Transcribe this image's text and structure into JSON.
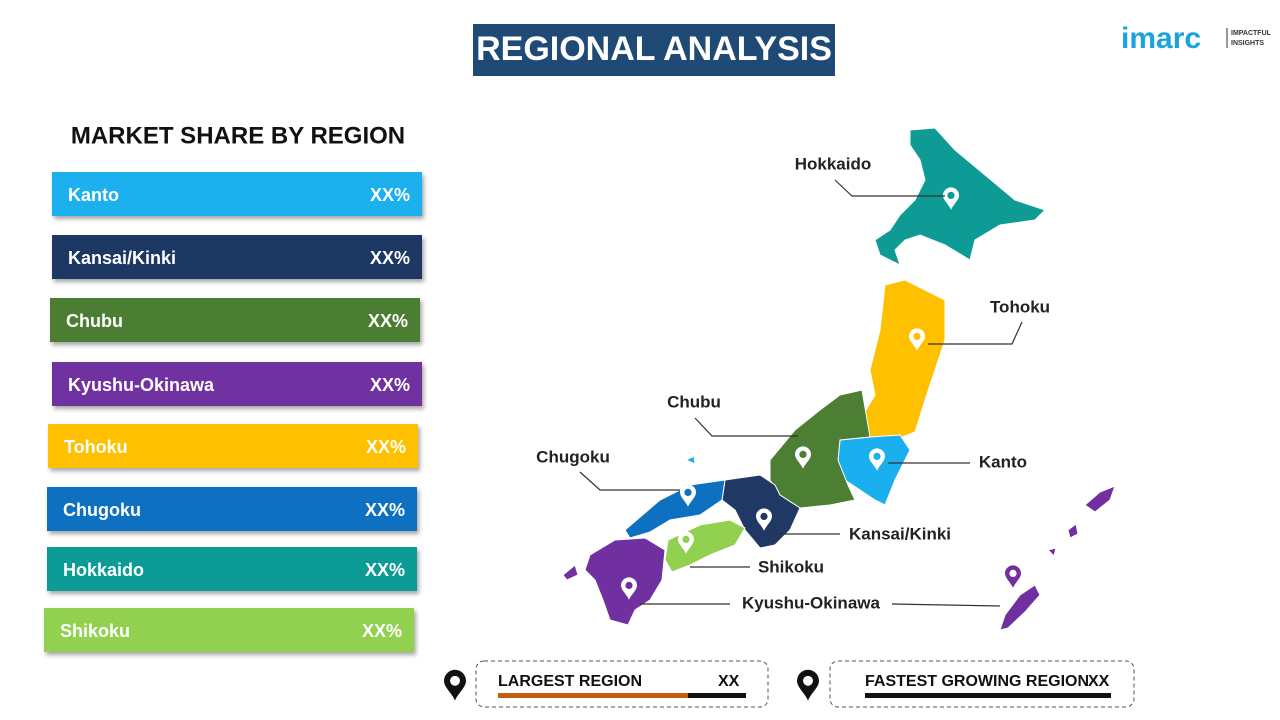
{
  "header": {
    "title": "REGIONAL ANALYSIS"
  },
  "logo": {
    "name": "imarc",
    "tagline_1": "IMPACTFUL",
    "tagline_2": "INSIGHTS"
  },
  "market_share": {
    "title": "MARKET SHARE BY REGION",
    "rows": [
      {
        "label": "Kanto",
        "value": "XX%"
      },
      {
        "label": "Kansai/Kinki",
        "value": "XX%"
      },
      {
        "label": "Chubu",
        "value": "XX%"
      },
      {
        "label": "Kyushu-Okinawa",
        "value": "XX%"
      },
      {
        "label": "Tohoku",
        "value": "XX%"
      },
      {
        "label": "Chugoku",
        "value": "XX%"
      },
      {
        "label": "Hokkaido",
        "value": "XX%"
      },
      {
        "label": "Shikoku",
        "value": "XX%"
      }
    ]
  },
  "map": {
    "labels": [
      "Hokkaido",
      "Tohoku",
      "Chubu",
      "Chugoku",
      "Kanto",
      "Kansai/Kinki",
      "Shikoku",
      "Kyushu-Okinawa"
    ]
  },
  "footer": {
    "largest": {
      "label": "LARGEST REGION",
      "value": "XX"
    },
    "fastest": {
      "label": "FASTEST GROWING REGION",
      "value": "XX"
    }
  }
}
